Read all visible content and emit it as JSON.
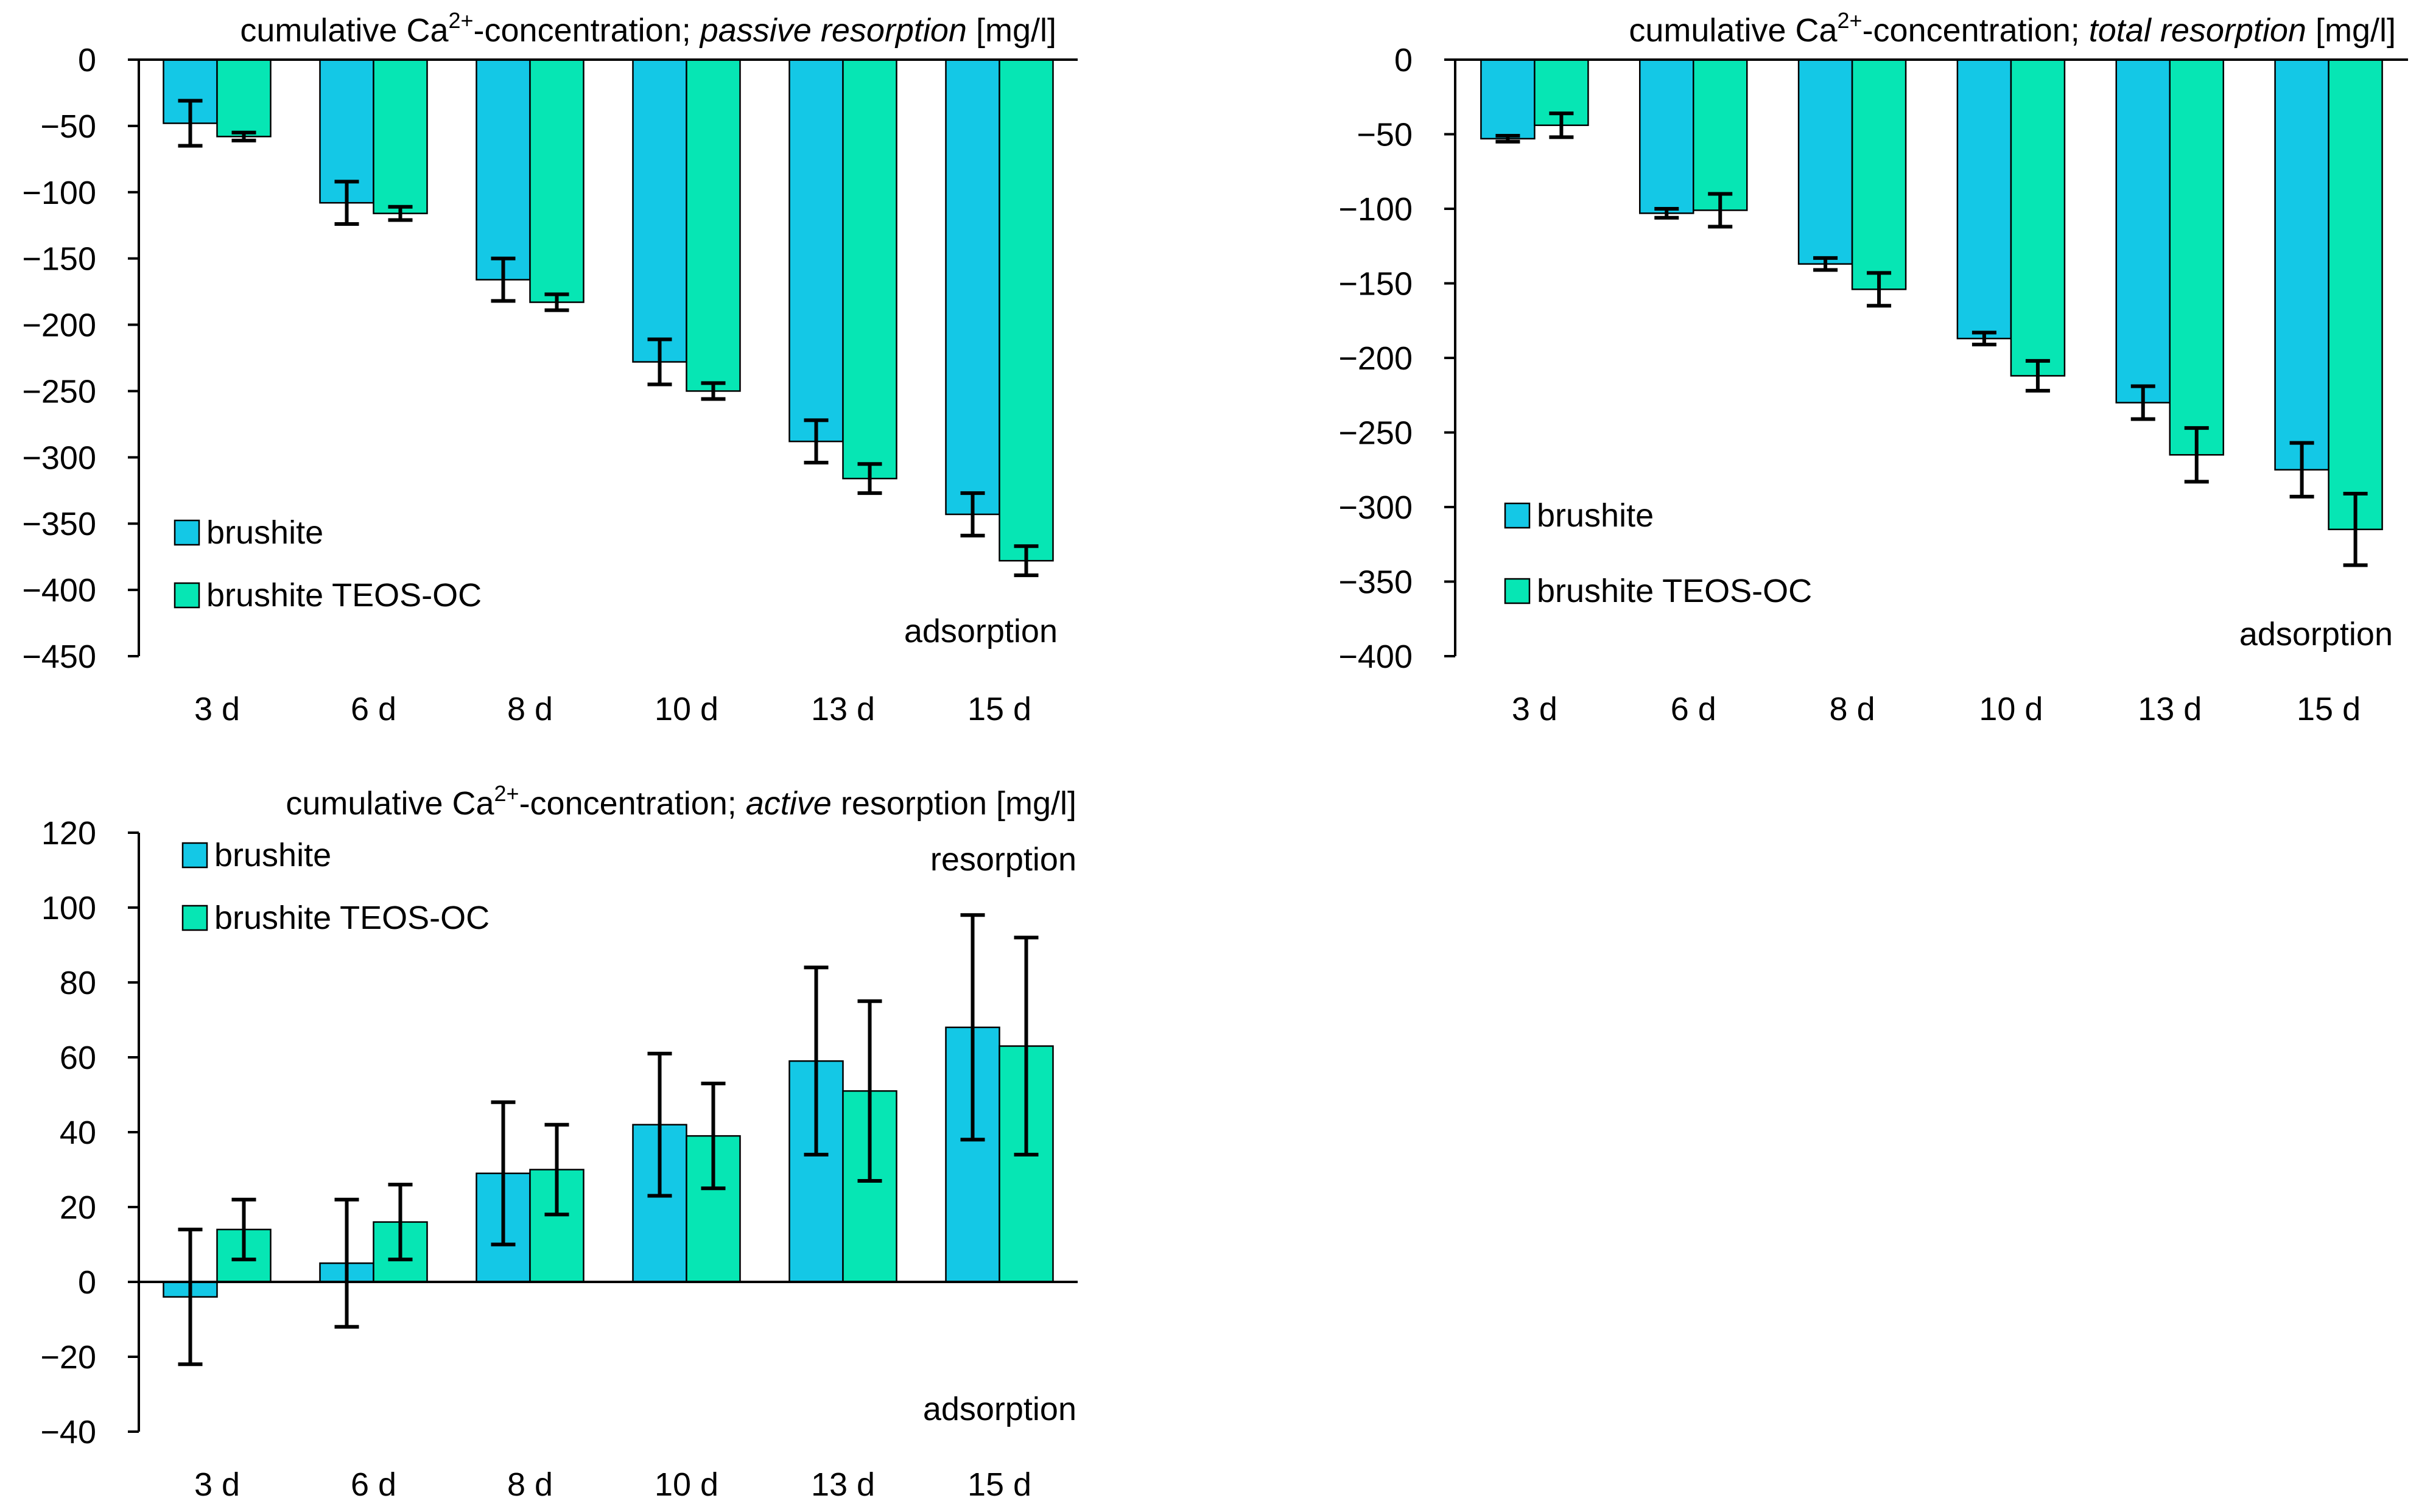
{
  "colors": {
    "brushite": "#14c8e6",
    "brushite_teos_oc": "#06e6b4",
    "error_bar": "#000000",
    "axis": "#000000"
  },
  "chart_data": [
    {
      "id": "passive",
      "type": "bar",
      "title_prefix": "cumulative Ca",
      "title_sup": "2+",
      "title_mid": "-concentration; ",
      "title_italic": "passive resorption",
      "title_unit": " [mg/l]",
      "categories": [
        "3 d",
        "6 d",
        "8 d",
        "10 d",
        "13 d",
        "15 d"
      ],
      "ylim": [
        -450,
        0
      ],
      "yticks": [
        0,
        -50,
        -100,
        -150,
        -200,
        -250,
        -300,
        -350,
        -400,
        -450
      ],
      "series": [
        {
          "name": "brushite",
          "values": [
            -48,
            -108,
            -166,
            -228,
            -288,
            -343
          ],
          "errors": [
            17,
            16,
            16,
            17,
            16,
            16
          ]
        },
        {
          "name": "brushite TEOS-OC",
          "values": [
            -58,
            -116,
            -183,
            -250,
            -316,
            -378
          ],
          "errors": [
            3,
            5,
            6,
            6,
            11,
            11
          ]
        }
      ],
      "annotations": [
        "adsorption"
      ],
      "legend_position": "bottom-left"
    },
    {
      "id": "total",
      "type": "bar",
      "title_prefix": "cumulative Ca",
      "title_sup": "2+",
      "title_mid": "-concentration; ",
      "title_italic": "total resorption",
      "title_unit": " [mg/l]",
      "categories": [
        "3 d",
        "6 d",
        "8 d",
        "10 d",
        "13 d",
        "15 d"
      ],
      "ylim": [
        -400,
        0
      ],
      "yticks": [
        0,
        -50,
        -100,
        -150,
        -200,
        -250,
        -300,
        -350,
        -400
      ],
      "series": [
        {
          "name": "brushite",
          "values": [
            -53,
            -103,
            -137,
            -187,
            -230,
            -275
          ],
          "errors": [
            2,
            3,
            4,
            4,
            11,
            18
          ]
        },
        {
          "name": "brushite TEOS-OC",
          "values": [
            -44,
            -101,
            -154,
            -212,
            -265,
            -315
          ],
          "errors": [
            8,
            11,
            11,
            10,
            18,
            24
          ]
        }
      ],
      "annotations": [
        "adsorption"
      ],
      "legend_position": "bottom-left"
    },
    {
      "id": "active",
      "type": "bar",
      "title_prefix": "cumulative Ca",
      "title_sup": "2+",
      "title_mid": "-concentration; ",
      "title_italic": "active",
      "title_unit": " resorption [mg/l]",
      "categories": [
        "3 d",
        "6 d",
        "8 d",
        "10 d",
        "13 d",
        "15 d"
      ],
      "ylim": [
        -40,
        120
      ],
      "yticks": [
        120,
        100,
        80,
        60,
        40,
        20,
        0,
        -20,
        -40
      ],
      "series": [
        {
          "name": "brushite",
          "values": [
            -4,
            5,
            29,
            42,
            59,
            68
          ],
          "errors": [
            18,
            17,
            19,
            19,
            25,
            30
          ]
        },
        {
          "name": "brushite TEOS-OC",
          "values": [
            14,
            16,
            30,
            39,
            51,
            63
          ],
          "errors": [
            8,
            10,
            12,
            14,
            24,
            29
          ]
        }
      ],
      "annotations": [
        "resorption",
        "adsorption"
      ],
      "legend_position": "top-left"
    }
  ]
}
